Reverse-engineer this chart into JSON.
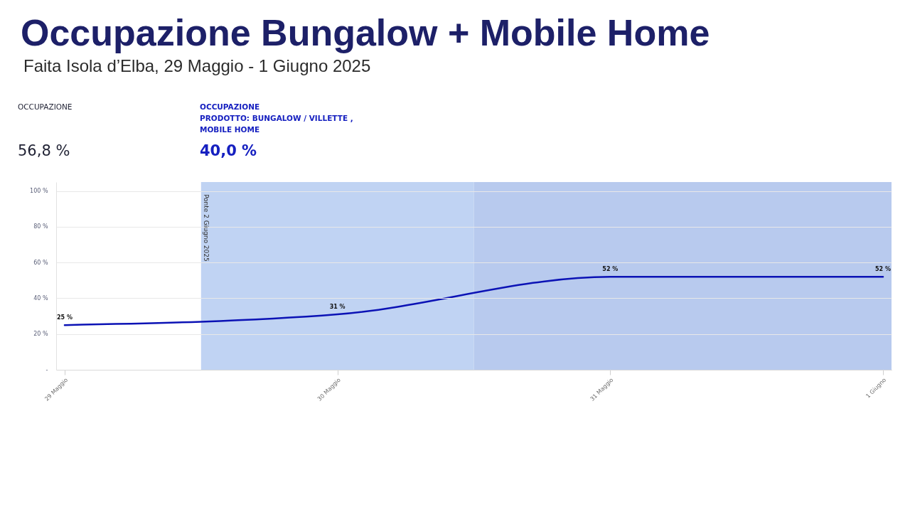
{
  "chart_data": {
    "type": "line",
    "title": "Occupazione Bungalow + Mobile Home",
    "subtitle": "Faita Isola d’Elba, 29 Maggio - 1 Giugno 2025",
    "annotations": [
      "OCCUPAZIONE",
      "56,8 %",
      "OCCUPAZIONE\nPRODOTTO: BUNGALOW / VILLETTE ,\nMOBILE HOME",
      "40,0 %"
    ],
    "x": [
      "2025-05-29",
      "2025-05-30",
      "2025-05-31",
      "2025-06-01"
    ],
    "values": [
      25,
      31,
      52,
      52
    ],
    "color": "#0b12b5",
    "value_labels": [
      "25 %",
      "31 %",
      "52 %",
      "52 %"
    ],
    "xlim": [
      "2025-05-28T23:15",
      "2025-06-01T00:45"
    ],
    "xticks": [
      {
        "value": "2025-05-29",
        "label": "29 Maggio"
      },
      {
        "value": "2025-05-30",
        "label": "30 Maggio"
      },
      {
        "value": "2025-05-31",
        "label": "31 Maggio"
      },
      {
        "value": "2025-06-01",
        "label": "1 Giugno"
      }
    ],
    "ylim": [
      0,
      105
    ],
    "yticks": [
      {
        "value": 0,
        "label": "-"
      },
      {
        "value": 20,
        "label": "20 %"
      },
      {
        "value": 40,
        "label": "40 %"
      },
      {
        "value": 60,
        "label": "60 %"
      },
      {
        "value": 80,
        "label": "80 %"
      },
      {
        "value": 100,
        "label": "100 %"
      }
    ],
    "bands": [
      {
        "axis": "x",
        "from": "2025-05-29T12:00",
        "to": "2025-05-30T12:00",
        "label": "Ponte 2 Giugno 2025",
        "color": "#c0d3f3"
      },
      {
        "axis": "x",
        "from": "2025-05-30T12:00",
        "to": "2025-06-01T00:45",
        "color": "#b8caee"
      }
    ],
    "grid": "y"
  }
}
